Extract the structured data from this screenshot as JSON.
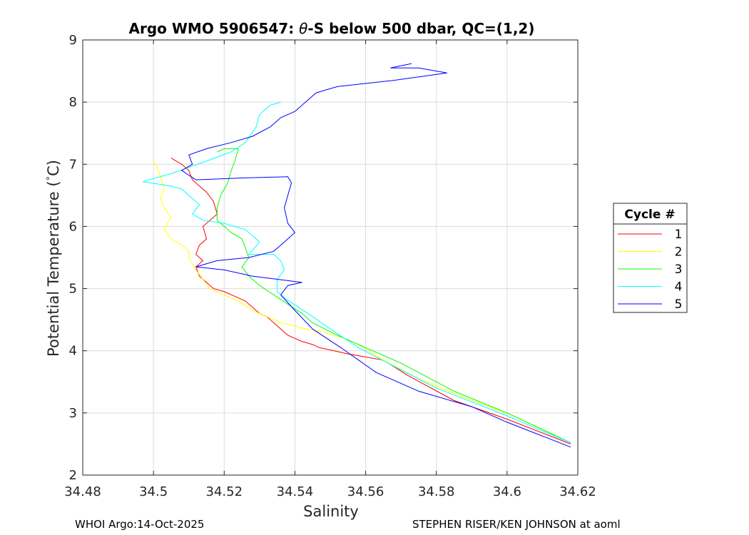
{
  "chart_data": {
    "type": "line",
    "title_prefix": "Argo WMO 5906547: ",
    "title_symbol": "θ",
    "title_suffix": "-S below 500 dbar,  QC=(1,2)",
    "xlabel": "Salinity",
    "ylabel_prefix": "Potential Temperature (",
    "ylabel_deg": "°",
    "ylabel_suffix": "C)",
    "xlim": [
      34.48,
      34.62
    ],
    "ylim": [
      2,
      9
    ],
    "xticks": [
      "34.48",
      "34.5",
      "34.52",
      "34.54",
      "34.56",
      "34.58",
      "34.6",
      "34.62"
    ],
    "yticks": [
      "2",
      "3",
      "4",
      "5",
      "6",
      "7",
      "8",
      "9"
    ],
    "grid": true,
    "legend": {
      "title": "Cycle #",
      "placement": "outside-right"
    },
    "series": [
      {
        "name": "1",
        "color": "#ff0000",
        "points": [
          [
            34.618,
            2.5
          ],
          [
            34.6,
            2.9
          ],
          [
            34.585,
            3.2
          ],
          [
            34.572,
            3.6
          ],
          [
            34.565,
            3.85
          ],
          [
            34.555,
            3.95
          ],
          [
            34.547,
            4.05
          ],
          [
            34.545,
            4.1
          ],
          [
            34.542,
            4.15
          ],
          [
            34.54,
            4.2
          ],
          [
            34.538,
            4.25
          ],
          [
            34.536,
            4.35
          ],
          [
            34.534,
            4.45
          ],
          [
            34.532,
            4.55
          ],
          [
            34.53,
            4.6
          ],
          [
            34.528,
            4.7
          ],
          [
            34.526,
            4.8
          ],
          [
            34.524,
            4.85
          ],
          [
            34.52,
            4.95
          ],
          [
            34.517,
            5.0
          ],
          [
            34.515,
            5.1
          ],
          [
            34.513,
            5.2
          ],
          [
            34.512,
            5.35
          ],
          [
            34.514,
            5.45
          ],
          [
            34.512,
            5.55
          ],
          [
            34.513,
            5.7
          ],
          [
            34.515,
            5.8
          ],
          [
            34.514,
            6.0
          ],
          [
            34.516,
            6.1
          ],
          [
            34.518,
            6.2
          ],
          [
            34.517,
            6.4
          ],
          [
            34.515,
            6.55
          ],
          [
            34.513,
            6.65
          ],
          [
            34.511,
            6.75
          ],
          [
            34.51,
            6.9
          ],
          [
            34.508,
            7.0
          ],
          [
            34.505,
            7.1
          ]
        ]
      },
      {
        "name": "2",
        "color": "#ffff00",
        "points": [
          [
            34.618,
            2.52
          ],
          [
            34.602,
            2.95
          ],
          [
            34.588,
            3.25
          ],
          [
            34.575,
            3.55
          ],
          [
            34.565,
            3.85
          ],
          [
            34.558,
            4.1
          ],
          [
            34.554,
            4.2
          ],
          [
            34.548,
            4.3
          ],
          [
            34.543,
            4.35
          ],
          [
            34.54,
            4.4
          ],
          [
            34.536,
            4.45
          ],
          [
            34.532,
            4.55
          ],
          [
            34.528,
            4.65
          ],
          [
            34.524,
            4.8
          ],
          [
            34.52,
            4.9
          ],
          [
            34.516,
            5.0
          ],
          [
            34.514,
            5.15
          ],
          [
            34.512,
            5.3
          ],
          [
            34.51,
            5.5
          ],
          [
            34.51,
            5.6
          ],
          [
            34.508,
            5.7
          ],
          [
            34.505,
            5.8
          ],
          [
            34.503,
            5.95
          ],
          [
            34.504,
            6.05
          ],
          [
            34.505,
            6.15
          ],
          [
            34.503,
            6.3
          ],
          [
            34.502,
            6.45
          ],
          [
            34.503,
            6.6
          ],
          [
            34.502,
            6.8
          ],
          [
            34.501,
            6.95
          ],
          [
            34.5,
            7.05
          ]
        ]
      },
      {
        "name": "3",
        "color": "#00ff00",
        "points": [
          [
            34.618,
            2.52
          ],
          [
            34.6,
            3.0
          ],
          [
            34.585,
            3.35
          ],
          [
            34.57,
            3.8
          ],
          [
            34.56,
            4.05
          ],
          [
            34.552,
            4.25
          ],
          [
            34.545,
            4.45
          ],
          [
            34.542,
            4.6
          ],
          [
            34.538,
            4.75
          ],
          [
            34.534,
            4.9
          ],
          [
            34.53,
            5.05
          ],
          [
            34.527,
            5.2
          ],
          [
            34.525,
            5.35
          ],
          [
            34.527,
            5.5
          ],
          [
            34.526,
            5.65
          ],
          [
            34.525,
            5.8
          ],
          [
            34.522,
            5.9
          ],
          [
            34.52,
            6.0
          ],
          [
            34.518,
            6.1
          ],
          [
            34.518,
            6.3
          ],
          [
            34.519,
            6.5
          ],
          [
            34.521,
            6.7
          ],
          [
            34.522,
            6.9
          ],
          [
            34.523,
            7.05
          ],
          [
            34.524,
            7.25
          ],
          [
            34.52,
            7.25
          ],
          [
            34.518,
            7.2
          ]
        ]
      },
      {
        "name": "4",
        "color": "#00ffff",
        "points": [
          [
            34.618,
            2.52
          ],
          [
            34.598,
            3.0
          ],
          [
            34.58,
            3.4
          ],
          [
            34.568,
            3.75
          ],
          [
            34.558,
            4.05
          ],
          [
            34.55,
            4.35
          ],
          [
            34.545,
            4.55
          ],
          [
            34.541,
            4.7
          ],
          [
            34.537,
            4.85
          ],
          [
            34.535,
            4.95
          ],
          [
            34.535,
            5.15
          ],
          [
            34.537,
            5.3
          ],
          [
            34.536,
            5.45
          ],
          [
            34.534,
            5.55
          ],
          [
            34.527,
            5.55
          ],
          [
            34.53,
            5.75
          ],
          [
            34.526,
            5.95
          ],
          [
            34.52,
            6.05
          ],
          [
            34.514,
            6.1
          ],
          [
            34.511,
            6.2
          ],
          [
            34.513,
            6.35
          ],
          [
            34.51,
            6.5
          ],
          [
            34.508,
            6.6
          ],
          [
            34.505,
            6.65
          ],
          [
            34.497,
            6.72
          ],
          [
            34.505,
            6.85
          ],
          [
            34.51,
            6.95
          ],
          [
            34.515,
            7.05
          ],
          [
            34.522,
            7.2
          ],
          [
            34.526,
            7.35
          ],
          [
            34.529,
            7.6
          ],
          [
            34.53,
            7.8
          ],
          [
            34.533,
            7.95
          ],
          [
            34.536,
            8.0
          ]
        ]
      },
      {
        "name": "5",
        "color": "#0000ff",
        "points": [
          [
            34.618,
            2.45
          ],
          [
            34.6,
            2.85
          ],
          [
            34.59,
            3.1
          ],
          [
            34.575,
            3.35
          ],
          [
            34.563,
            3.65
          ],
          [
            34.553,
            4.05
          ],
          [
            34.545,
            4.35
          ],
          [
            34.54,
            4.65
          ],
          [
            34.536,
            4.9
          ],
          [
            34.538,
            5.05
          ],
          [
            34.542,
            5.1
          ],
          [
            34.535,
            5.15
          ],
          [
            34.528,
            5.2
          ],
          [
            34.52,
            5.3
          ],
          [
            34.512,
            5.35
          ],
          [
            34.518,
            5.45
          ],
          [
            34.527,
            5.5
          ],
          [
            34.534,
            5.6
          ],
          [
            34.537,
            5.75
          ],
          [
            34.54,
            5.9
          ],
          [
            34.538,
            6.05
          ],
          [
            34.537,
            6.3
          ],
          [
            34.538,
            6.5
          ],
          [
            34.539,
            6.7
          ],
          [
            34.538,
            6.8
          ],
          [
            34.525,
            6.78
          ],
          [
            34.512,
            6.75
          ],
          [
            34.508,
            6.9
          ],
          [
            34.511,
            7.0
          ],
          [
            34.51,
            7.15
          ],
          [
            34.515,
            7.25
          ],
          [
            34.522,
            7.35
          ],
          [
            34.528,
            7.45
          ],
          [
            34.533,
            7.6
          ],
          [
            34.536,
            7.75
          ],
          [
            34.54,
            7.85
          ],
          [
            34.543,
            8.0
          ],
          [
            34.546,
            8.15
          ],
          [
            34.552,
            8.25
          ],
          [
            34.568,
            8.35
          ],
          [
            34.583,
            8.47
          ],
          [
            34.575,
            8.55
          ],
          [
            34.567,
            8.55
          ],
          [
            34.573,
            8.62
          ]
        ]
      }
    ]
  },
  "footer": {
    "left": "WHOI Argo:14-Oct-2025",
    "right": "STEPHEN RISER/KEN JOHNSON at aoml"
  }
}
